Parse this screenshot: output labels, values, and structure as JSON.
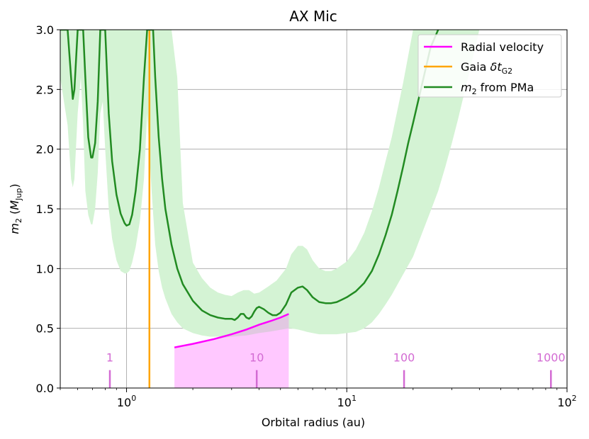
{
  "chart_data": {
    "type": "line",
    "title": "AX Mic",
    "xlabel": "Orbital radius (au)",
    "ylabel": "m_2 (M_Jup)",
    "ylabel_parts": {
      "m": "m",
      "sub2": "2",
      "open": " (",
      "M": "M",
      "sub_jup": "Jup",
      "close": ")"
    },
    "x_scale": "log",
    "xlim": [
      0.5,
      100
    ],
    "ylim": [
      0,
      3.0
    ],
    "x_major_ticks": [
      {
        "value": 1,
        "base": "10",
        "exp": "0"
      },
      {
        "value": 10,
        "base": "10",
        "exp": "1"
      },
      {
        "value": 100,
        "base": "10",
        "exp": "2"
      }
    ],
    "x_minor_ticks": [
      0.5,
      0.6,
      0.7,
      0.8,
      0.9,
      2,
      3,
      4,
      5,
      6,
      7,
      8,
      9,
      20,
      30,
      40,
      50,
      60,
      70,
      80,
      90
    ],
    "y_ticks": [
      {
        "value": 0.0,
        "label": "0.0"
      },
      {
        "value": 0.5,
        "label": "0.5"
      },
      {
        "value": 1.0,
        "label": "1.0"
      },
      {
        "value": 1.5,
        "label": "1.5"
      },
      {
        "value": 2.0,
        "label": "2.0"
      },
      {
        "value": 2.5,
        "label": "2.5"
      },
      {
        "value": 3.0,
        "label": "3.0"
      }
    ],
    "grid": true,
    "legend_position": "top-right",
    "legend": [
      {
        "key": "rv",
        "label": "Radial velocity",
        "color": "#ff00ff"
      },
      {
        "key": "gaia",
        "label_main": "Gaia ",
        "label_delta": "δ",
        "label_t": "t",
        "label_sub": "G2",
        "color": "#ffa500"
      },
      {
        "key": "pma",
        "label_m": "m",
        "label_sub": "2",
        "label_rest": " from PMa",
        "color": "#228b22"
      }
    ],
    "colors": {
      "pma_line": "#228b22",
      "pma_band": "#d4f3d4",
      "rv_line": "#ff00ff",
      "rv_fill": "#ffc8ff",
      "rv_overlap": "#c8c8c8",
      "gaia": "#ffa500",
      "period_ticks": "#d36bd3",
      "grid": "#b0b0b0"
    },
    "gaia_line_x": 1.27,
    "period_markers": [
      {
        "x": 0.84,
        "label": "1"
      },
      {
        "x": 3.9,
        "label": "10"
      },
      {
        "x": 18.2,
        "label": "100"
      },
      {
        "x": 84.5,
        "label": "1000"
      }
    ],
    "period_marker_height": [
      0,
      0.15
    ],
    "rv_curve": {
      "x": [
        1.65,
        2.0,
        2.5,
        3.0,
        3.5,
        4.0,
        4.5,
        5.0,
        5.45
      ],
      "y": [
        0.34,
        0.37,
        0.41,
        0.45,
        0.49,
        0.53,
        0.56,
        0.59,
        0.62
      ]
    },
    "pma_series": {
      "name": "m2 from PMa",
      "x": [
        0.5,
        0.54,
        0.56,
        0.57,
        0.58,
        0.6,
        0.62,
        0.635,
        0.65,
        0.67,
        0.69,
        0.7,
        0.72,
        0.74,
        0.76,
        0.78,
        0.8,
        0.83,
        0.86,
        0.9,
        0.94,
        0.98,
        1.0,
        1.03,
        1.06,
        1.1,
        1.15,
        1.2,
        1.24,
        1.26,
        1.27,
        1.28,
        1.3,
        1.32,
        1.35,
        1.4,
        1.45,
        1.5,
        1.6,
        1.7,
        1.8,
        2.0,
        2.2,
        2.4,
        2.6,
        2.8,
        3.0,
        3.1,
        3.2,
        3.3,
        3.4,
        3.5,
        3.6,
        3.7,
        3.8,
        3.9,
        4.0,
        4.2,
        4.4,
        4.6,
        4.8,
        5.0,
        5.3,
        5.6,
        6.0,
        6.3,
        6.6,
        7.0,
        7.5,
        8.0,
        8.5,
        9.0,
        9.5,
        10.0,
        11.0,
        12.0,
        13.0,
        14.0,
        15.0,
        16.0,
        17.0,
        18.0,
        19.0,
        20.0,
        22.0,
        24.0,
        26.0
      ],
      "y": [
        3.0,
        3.0,
        2.6,
        2.42,
        2.5,
        3.0,
        3.0,
        3.0,
        2.6,
        2.1,
        1.93,
        1.93,
        2.05,
        2.4,
        3.0,
        3.0,
        3.0,
        2.3,
        1.9,
        1.62,
        1.46,
        1.38,
        1.36,
        1.37,
        1.45,
        1.65,
        2.0,
        2.6,
        3.0,
        3.0,
        3.0,
        3.0,
        3.0,
        3.0,
        2.6,
        2.1,
        1.75,
        1.5,
        1.2,
        1.0,
        0.87,
        0.73,
        0.65,
        0.61,
        0.59,
        0.58,
        0.58,
        0.57,
        0.59,
        0.62,
        0.62,
        0.59,
        0.58,
        0.6,
        0.64,
        0.67,
        0.68,
        0.66,
        0.63,
        0.61,
        0.61,
        0.63,
        0.7,
        0.8,
        0.84,
        0.85,
        0.82,
        0.76,
        0.72,
        0.71,
        0.71,
        0.72,
        0.74,
        0.76,
        0.81,
        0.88,
        0.98,
        1.12,
        1.28,
        1.45,
        1.65,
        1.85,
        2.05,
        2.22,
        2.55,
        2.85,
        3.0
      ]
    },
    "pma_band": {
      "x": [
        0.5,
        0.54,
        0.56,
        0.57,
        0.58,
        0.6,
        0.62,
        0.635,
        0.65,
        0.67,
        0.69,
        0.7,
        0.72,
        0.74,
        0.76,
        0.78,
        0.8,
        0.83,
        0.86,
        0.9,
        0.94,
        0.98,
        1.0,
        1.03,
        1.06,
        1.1,
        1.15,
        1.2,
        1.24,
        1.3,
        1.35,
        1.4,
        1.45,
        1.5,
        1.6,
        1.7,
        1.8,
        2.0,
        2.2,
        2.4,
        2.6,
        2.8,
        3.0,
        3.2,
        3.4,
        3.6,
        3.8,
        4.0,
        4.4,
        4.8,
        5.3,
        5.6,
        6.0,
        6.3,
        6.6,
        7.0,
        7.5,
        8.0,
        8.5,
        9.0,
        10.0,
        11.0,
        12.0,
        13.0,
        14.0,
        15.0,
        16.0,
        18.0,
        20.0,
        22.0,
        24.0,
        26.0,
        28.0,
        30.0,
        32.0,
        35.0,
        40.0
      ],
      "low": [
        2.6,
        2.2,
        1.75,
        1.68,
        1.75,
        2.3,
        2.6,
        2.2,
        1.65,
        1.45,
        1.37,
        1.37,
        1.5,
        1.8,
        2.3,
        2.4,
        2.0,
        1.5,
        1.25,
        1.07,
        0.98,
        0.96,
        0.96,
        0.98,
        1.05,
        1.18,
        1.4,
        1.75,
        2.3,
        1.65,
        1.2,
        0.98,
        0.84,
        0.75,
        0.62,
        0.55,
        0.5,
        0.46,
        0.44,
        0.43,
        0.43,
        0.43,
        0.43,
        0.44,
        0.44,
        0.44,
        0.45,
        0.46,
        0.47,
        0.48,
        0.5,
        0.5,
        0.49,
        0.48,
        0.47,
        0.46,
        0.45,
        0.45,
        0.45,
        0.45,
        0.46,
        0.47,
        0.5,
        0.55,
        0.62,
        0.7,
        0.78,
        0.95,
        1.1,
        1.3,
        1.48,
        1.65,
        1.85,
        2.05,
        2.25,
        2.55,
        3.0
      ],
      "high": [
        3.0,
        3.0,
        3.0,
        3.0,
        3.0,
        3.0,
        3.0,
        3.0,
        3.0,
        3.0,
        3.0,
        3.0,
        3.0,
        3.0,
        3.0,
        3.0,
        3.0,
        3.0,
        3.0,
        3.0,
        3.0,
        3.0,
        3.0,
        3.0,
        3.0,
        3.0,
        3.0,
        3.0,
        3.0,
        3.0,
        3.0,
        3.0,
        3.0,
        3.0,
        3.0,
        2.6,
        1.55,
        1.05,
        0.92,
        0.84,
        0.8,
        0.78,
        0.77,
        0.8,
        0.82,
        0.82,
        0.79,
        0.8,
        0.85,
        0.9,
        1.0,
        1.12,
        1.19,
        1.19,
        1.16,
        1.07,
        1.0,
        0.98,
        0.98,
        1.0,
        1.06,
        1.16,
        1.3,
        1.48,
        1.68,
        1.9,
        2.1,
        2.55,
        3.0,
        3.0,
        3.0,
        3.0,
        3.0,
        3.0,
        3.0,
        3.0,
        3.0
      ]
    }
  }
}
